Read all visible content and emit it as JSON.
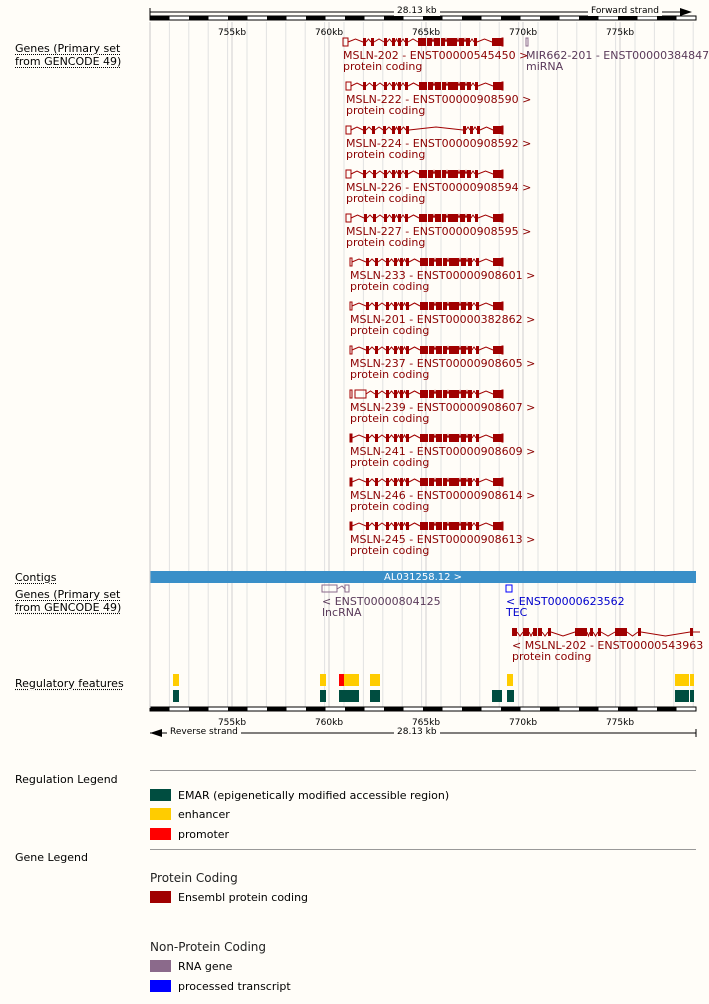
{
  "ruler_top": {
    "length": "28.13 kb",
    "strand": "Forward strand"
  },
  "ruler_bottom": {
    "length": "28.13 kb",
    "strand": "Reverse strand"
  },
  "coord_ticks": [
    "755kb",
    "760kb",
    "765kb",
    "770kb",
    "775kb"
  ],
  "tracks": {
    "genes_forward": "Genes (Primary set\nfrom GENCODE 49)",
    "contigs": "Contigs",
    "genes_reverse": "Genes (Primary set\nfrom GENCODE 49)",
    "regulatory": "Regulatory features"
  },
  "forward_transcripts": [
    {
      "name": "MSLN-202 - ENST00000545450 >",
      "biotype": "protein coding"
    },
    {
      "name": "MSLN-222 - ENST00000908590 >",
      "biotype": "protein coding"
    },
    {
      "name": "MSLN-224 - ENST00000908592 >",
      "biotype": "protein coding"
    },
    {
      "name": "MSLN-226 - ENST00000908594 >",
      "biotype": "protein coding"
    },
    {
      "name": "MSLN-227 - ENST00000908595 >",
      "biotype": "protein coding"
    },
    {
      "name": "MSLN-233 - ENST00000908601 >",
      "biotype": "protein coding"
    },
    {
      "name": "MSLN-201 - ENST00000382862 >",
      "biotype": "protein coding"
    },
    {
      "name": "MSLN-237 - ENST00000908605 >",
      "biotype": "protein coding"
    },
    {
      "name": "MSLN-239 - ENST00000908607 >",
      "biotype": "protein coding"
    },
    {
      "name": "MSLN-241 - ENST00000908609 >",
      "biotype": "protein coding"
    },
    {
      "name": "MSLN-246 - ENST00000908614 >",
      "biotype": "protein coding"
    },
    {
      "name": "MSLN-245 - ENST00000908613 >",
      "biotype": "protein coding"
    }
  ],
  "mirna": {
    "name": "MIR662-201 - ENST00000384847",
    "biotype": "miRNA"
  },
  "contig": {
    "name": "AL031258.12 >"
  },
  "reverse_transcripts": {
    "lnc": {
      "name": "< ENST00000804125",
      "biotype": "lncRNA"
    },
    "tec": {
      "name": "< ENST00000623562",
      "biotype": "TEC"
    },
    "msnl": {
      "name": "< MSLNL-202 - ENST00000543963",
      "biotype": "protein coding"
    }
  },
  "regulation_legend": {
    "title": "Regulation Legend",
    "items": [
      {
        "label": "EMAR (epigenetically modified accessible region)",
        "color": "#004d40"
      },
      {
        "label": "enhancer",
        "color": "#ffcc00"
      },
      {
        "label": "promoter",
        "color": "#ff0000"
      }
    ]
  },
  "gene_legend": {
    "title": "Gene Legend",
    "protein_coding_heading": "Protein Coding",
    "protein_coding_items": [
      {
        "label": "Ensembl protein coding",
        "color": "#a00000"
      }
    ],
    "non_protein_heading": "Non-Protein Coding",
    "non_protein_items": [
      {
        "label": "RNA gene",
        "color": "#8b6a8b"
      },
      {
        "label": "processed transcript",
        "color": "#0000ff"
      }
    ]
  },
  "colors": {
    "contig_bar": "#3a8fc8",
    "gene_red": "#a00000",
    "emar": "#004d40",
    "enhancer": "#ffcc00",
    "promoter": "#ff0000"
  }
}
